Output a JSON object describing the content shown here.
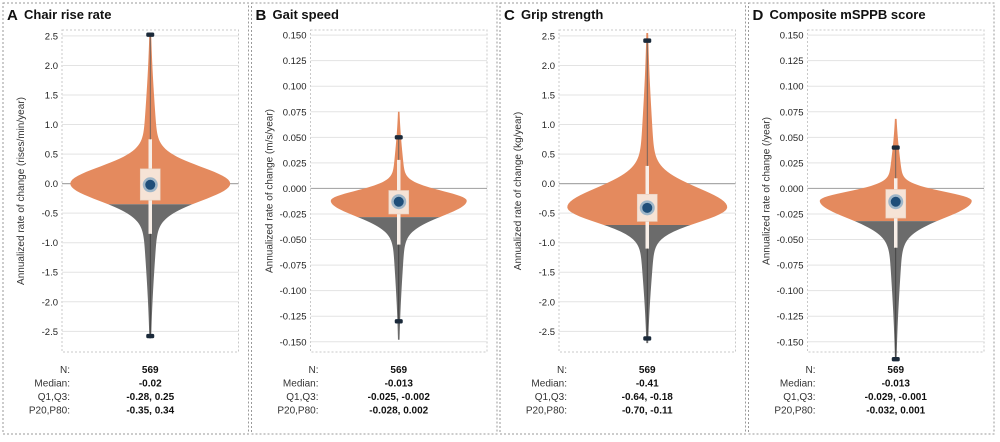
{
  "colors": {
    "violin_upper": "#e48a5e",
    "violin_lower": "#6b6b6b",
    "box": "#f6e3d6",
    "whisker": "#f8efe8",
    "median_outer": "#9fb6c8",
    "median_inner": "#1f4e79",
    "extreme": "#1b2a3a",
    "grid": "#e3e3e3",
    "zero_line": "#a9a9a9",
    "panel_border": "#9a9a9a"
  },
  "chart_data": [
    {
      "type": "violin",
      "letter": "A",
      "title": "Chair rise rate",
      "ylabel": "Annualized rate of change (rises/min/year)",
      "ylim": [
        -2.85,
        2.6
      ],
      "ticks": [
        "2.5",
        "2.0",
        "1.5",
        "1.0",
        "0.5",
        "0.0",
        "-0.5",
        "-1.0",
        "-1.5",
        "-2.0",
        "-2.5"
      ],
      "median": -0.02,
      "q1": -0.28,
      "q3": 0.25,
      "p20": -0.35,
      "p80": 0.34,
      "whisker_low": -0.85,
      "whisker_high": 0.75,
      "max": 2.52,
      "min": -2.58,
      "violin_top": 2.55,
      "violin_bottom": -2.62,
      "mode": 0.0,
      "width": 1.0,
      "stats": {
        "n_label": "N:",
        "n": "569",
        "median_label": "Median:",
        "median": "-0.02",
        "q_label": "Q1,Q3:",
        "q": "-0.28, 0.25",
        "p_label": "P20,P80:",
        "p": "-0.35, 0.34"
      }
    },
    {
      "type": "violin",
      "letter": "B",
      "title": "Gait speed",
      "ylabel": "Annualized rate of change (m/s/year)",
      "ylim": [
        -0.16,
        0.155
      ],
      "ticks": [
        "0.150",
        "0.125",
        "0.100",
        "0.075",
        "0.050",
        "0.025",
        "0.000",
        "-0.025",
        "-0.050",
        "-0.075",
        "-0.100",
        "-0.125",
        "-0.150"
      ],
      "median": -0.013,
      "q1": -0.025,
      "q3": -0.002,
      "p20": -0.028,
      "p80": 0.002,
      "whisker_low": -0.055,
      "whisker_high": 0.028,
      "max": 0.05,
      "min": -0.13,
      "violin_top": 0.075,
      "violin_bottom": -0.148,
      "mode": -0.012,
      "width": 0.85,
      "stats": {
        "n_label": "N:",
        "n": "569",
        "median_label": "Median:",
        "median": "-0.013",
        "q_label": "Q1,Q3:",
        "q": "-0.025, -0.002",
        "p_label": "P20,P80:",
        "p": "-0.028, 0.002"
      }
    },
    {
      "type": "violin",
      "letter": "C",
      "title": "Grip strength",
      "ylabel": "Annualized rate of change (kg/year)",
      "ylim": [
        -2.85,
        2.6
      ],
      "ticks": [
        "2.5",
        "2.0",
        "1.5",
        "1.0",
        "0.5",
        "0.0",
        "-0.5",
        "-1.0",
        "-1.5",
        "-2.0",
        "-2.5"
      ],
      "median": -0.41,
      "q1": -0.64,
      "q3": -0.18,
      "p20": -0.7,
      "p80": -0.11,
      "whisker_low": -1.1,
      "whisker_high": 0.3,
      "max": 2.42,
      "min": -2.62,
      "violin_top": 2.55,
      "violin_bottom": -2.7,
      "mode": -0.4,
      "width": 1.0,
      "stats": {
        "n_label": "N:",
        "n": "569",
        "median_label": "Median:",
        "median": "-0.41",
        "q_label": "Q1,Q3:",
        "q": "-0.64, -0.18",
        "p_label": "P20,P80:",
        "p": "-0.70, -0.11"
      }
    },
    {
      "type": "violin",
      "letter": "D",
      "title": "Composite mSPPB score",
      "ylabel": "Annualized rate of change (/year)",
      "ylim": [
        -0.16,
        0.155
      ],
      "ticks": [
        "0.150",
        "0.125",
        "0.100",
        "0.075",
        "0.050",
        "0.025",
        "0.000",
        "-0.025",
        "-0.050",
        "-0.075",
        "-0.100",
        "-0.125",
        "-0.150"
      ],
      "median": -0.013,
      "q1": -0.029,
      "q3": -0.001,
      "p20": -0.032,
      "p80": 0.001,
      "whisker_low": -0.058,
      "whisker_high": 0.01,
      "max": 0.04,
      "min": -0.167,
      "violin_top": 0.068,
      "violin_bottom": -0.165,
      "mode": -0.012,
      "width": 0.95,
      "stats": {
        "n_label": "N:",
        "n": "569",
        "median_label": "Median:",
        "median": "-0.013",
        "q_label": "Q1,Q3:",
        "q": "-0.029, -0.001",
        "p_label": "P20,P80:",
        "p": "-0.032, 0.001"
      }
    }
  ]
}
